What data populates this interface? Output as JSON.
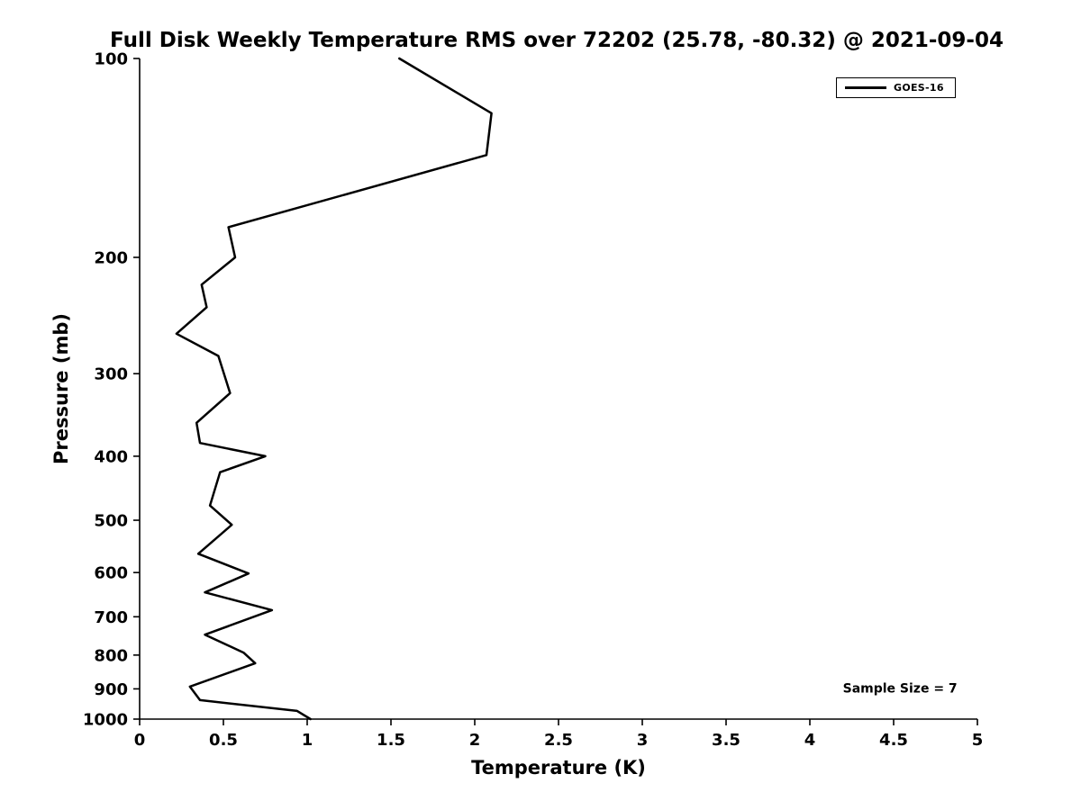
{
  "chart_data": {
    "type": "line",
    "title": "Full Disk Weekly Temperature RMS over 72202 (25.78, -80.32) @ 2021-09-04",
    "xlabel": "Temperature (K)",
    "ylabel": "Pressure (mb)",
    "xlim": [
      0,
      5
    ],
    "ylim": [
      100,
      1000
    ],
    "x_scale": "linear",
    "y_scale": "log",
    "y_direction": "increasing-downward",
    "grid": false,
    "background": "#ffffff",
    "axis_color": "#000000",
    "xticks": {
      "values": [
        0,
        0.5,
        1,
        1.5,
        2,
        2.5,
        3,
        3.5,
        4,
        4.5,
        5
      ],
      "labels": [
        "0",
        "0.5",
        "1",
        "1.5",
        "2",
        "2.5",
        "3",
        "3.5",
        "4",
        "4.5",
        "5"
      ]
    },
    "yticks": {
      "values": [
        100,
        200,
        300,
        400,
        500,
        600,
        700,
        800,
        900,
        1000
      ],
      "labels": [
        "100",
        "200",
        "300",
        "400",
        "500",
        "600",
        "700",
        "800",
        "900",
        "1000"
      ]
    },
    "legend": {
      "position": "top-right",
      "entries": [
        {
          "label": "GOES-16",
          "color": "#000000"
        }
      ]
    },
    "annotations": [
      {
        "text": "Sample Size = 7",
        "x": 4.88,
        "y": 897,
        "anchor": "end"
      }
    ],
    "series": [
      {
        "name": "GOES-16",
        "color": "#000000",
        "linewidth": 2.5,
        "points_format": [
          "temperature_K",
          "pressure_mb"
        ],
        "points": [
          [
            1.55,
            100
          ],
          [
            2.1,
            121
          ],
          [
            2.07,
            140
          ],
          [
            0.53,
            180
          ],
          [
            0.57,
            200
          ],
          [
            0.37,
            220
          ],
          [
            0.4,
            238
          ],
          [
            0.22,
            261
          ],
          [
            0.47,
            282
          ],
          [
            0.54,
            321
          ],
          [
            0.34,
            356
          ],
          [
            0.36,
            382
          ],
          [
            0.75,
            400
          ],
          [
            0.48,
            423
          ],
          [
            0.42,
            475
          ],
          [
            0.55,
            508
          ],
          [
            0.35,
            562
          ],
          [
            0.65,
            602
          ],
          [
            0.39,
            643
          ],
          [
            0.79,
            684
          ],
          [
            0.39,
            745
          ],
          [
            0.62,
            793
          ],
          [
            0.69,
            823
          ],
          [
            0.3,
            893
          ],
          [
            0.36,
            936
          ],
          [
            0.94,
            972
          ],
          [
            1.02,
            1000
          ]
        ]
      }
    ]
  }
}
